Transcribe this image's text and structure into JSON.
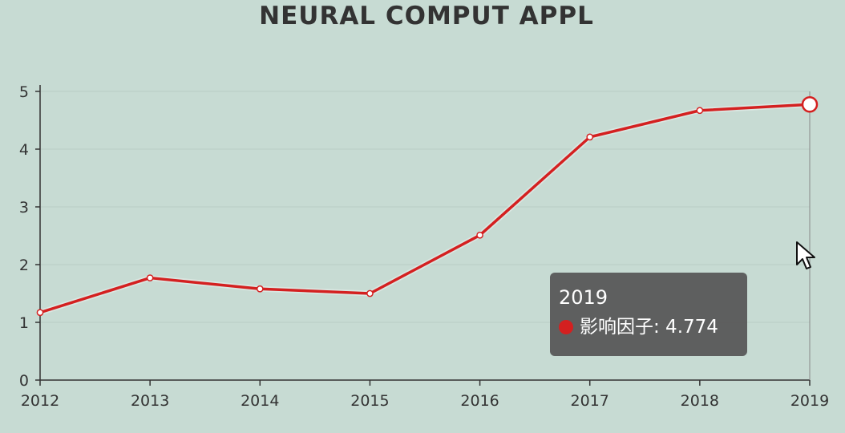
{
  "chart_data": {
    "type": "line",
    "title": "NEURAL COMPUT APPL",
    "xlabel": "",
    "ylabel": "",
    "categories": [
      "2012",
      "2013",
      "2014",
      "2015",
      "2016",
      "2017",
      "2018",
      "2019"
    ],
    "series": [
      {
        "name": "影响因子",
        "values": [
          1.17,
          1.77,
          1.58,
          1.5,
          2.51,
          4.21,
          4.67,
          4.774
        ],
        "color": "#d42020"
      }
    ],
    "ylim": [
      0,
      5
    ],
    "yticks": [
      "0",
      "1",
      "2",
      "3",
      "4",
      "5"
    ],
    "grid": true,
    "legend": "none"
  },
  "tooltip": {
    "title": "2019",
    "series_name": "影响因子",
    "value": "4.774",
    "row_text": "影响因子: 4.774"
  },
  "colors": {
    "background": "#c7dbd3",
    "line": "#d42020",
    "axis": "#333333",
    "grid": "#b9ccc5"
  }
}
